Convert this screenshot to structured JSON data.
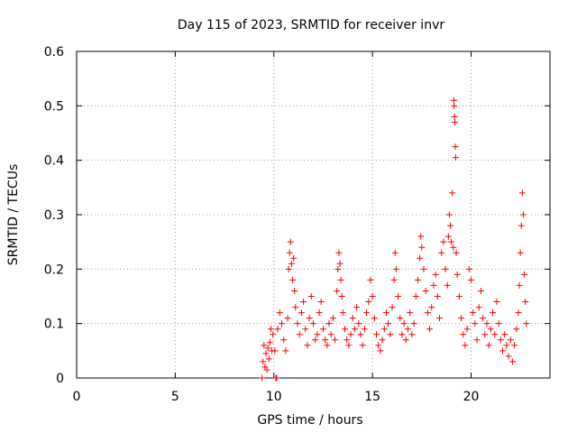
{
  "chart_data": {
    "type": "scatter",
    "title": "Day 115 of 2023, SRMTID for receiver invr",
    "xlabel": "GPS time / hours",
    "ylabel": "SRMTID / TECUs",
    "xlim": [
      0,
      24
    ],
    "ylim": [
      0,
      0.6
    ],
    "xticks": [
      0,
      5,
      10,
      15,
      20
    ],
    "xtick_labels": [
      "0",
      "5",
      "10",
      "15",
      "20"
    ],
    "yticks": [
      0,
      0.1,
      0.2,
      0.3,
      0.4,
      0.5,
      0.6
    ],
    "ytick_labels": [
      "0",
      "0.1",
      "0.2",
      "0.3",
      "0.4",
      "0.5",
      "0.6"
    ],
    "grid": true,
    "marker": "+",
    "color": "#ff0000",
    "series": [
      {
        "name": "SRMTID",
        "points": [
          [
            9.4,
            0.0
          ],
          [
            9.45,
            0.03
          ],
          [
            9.5,
            0.06
          ],
          [
            9.55,
            0.02
          ],
          [
            9.6,
            0.045
          ],
          [
            9.65,
            0.015
          ],
          [
            9.7,
            0.055
          ],
          [
            9.75,
            0.035
          ],
          [
            9.8,
            0.065
          ],
          [
            9.85,
            0.09
          ],
          [
            9.9,
            0.05
          ],
          [
            9.95,
            0.08
          ],
          [
            10.1,
            0.0
          ],
          [
            10.15,
            0.0
          ],
          [
            10.05,
            0.05
          ],
          [
            10.2,
            0.09
          ],
          [
            10.3,
            0.12
          ],
          [
            10.4,
            0.1
          ],
          [
            10.5,
            0.07
          ],
          [
            10.6,
            0.05
          ],
          [
            10.7,
            0.11
          ],
          [
            10.75,
            0.2
          ],
          [
            10.8,
            0.23
          ],
          [
            10.85,
            0.25
          ],
          [
            10.9,
            0.21
          ],
          [
            10.95,
            0.18
          ],
          [
            11.0,
            0.22
          ],
          [
            11.05,
            0.16
          ],
          [
            11.1,
            0.13
          ],
          [
            11.2,
            0.1
          ],
          [
            11.3,
            0.08
          ],
          [
            11.4,
            0.12
          ],
          [
            11.5,
            0.14
          ],
          [
            11.6,
            0.09
          ],
          [
            11.7,
            0.06
          ],
          [
            11.8,
            0.11
          ],
          [
            11.9,
            0.15
          ],
          [
            12.0,
            0.1
          ],
          [
            12.1,
            0.07
          ],
          [
            12.2,
            0.08
          ],
          [
            12.3,
            0.12
          ],
          [
            12.4,
            0.14
          ],
          [
            12.5,
            0.09
          ],
          [
            12.6,
            0.07
          ],
          [
            12.7,
            0.06
          ],
          [
            12.8,
            0.1
          ],
          [
            12.9,
            0.08
          ],
          [
            13.0,
            0.11
          ],
          [
            13.1,
            0.07
          ],
          [
            13.2,
            0.16
          ],
          [
            13.25,
            0.2
          ],
          [
            13.3,
            0.23
          ],
          [
            13.35,
            0.21
          ],
          [
            13.4,
            0.18
          ],
          [
            13.45,
            0.15
          ],
          [
            13.5,
            0.12
          ],
          [
            13.6,
            0.09
          ],
          [
            13.7,
            0.07
          ],
          [
            13.8,
            0.06
          ],
          [
            13.9,
            0.08
          ],
          [
            14.0,
            0.11
          ],
          [
            14.1,
            0.09
          ],
          [
            14.2,
            0.13
          ],
          [
            14.3,
            0.1
          ],
          [
            14.4,
            0.08
          ],
          [
            14.5,
            0.06
          ],
          [
            14.6,
            0.09
          ],
          [
            14.7,
            0.12
          ],
          [
            14.8,
            0.14
          ],
          [
            14.9,
            0.18
          ],
          [
            15.0,
            0.15
          ],
          [
            15.1,
            0.11
          ],
          [
            15.2,
            0.08
          ],
          [
            15.3,
            0.06
          ],
          [
            15.4,
            0.05
          ],
          [
            15.5,
            0.07
          ],
          [
            15.6,
            0.09
          ],
          [
            15.7,
            0.12
          ],
          [
            15.8,
            0.1
          ],
          [
            15.9,
            0.08
          ],
          [
            16.0,
            0.13
          ],
          [
            16.1,
            0.18
          ],
          [
            16.15,
            0.23
          ],
          [
            16.2,
            0.2
          ],
          [
            16.3,
            0.15
          ],
          [
            16.4,
            0.11
          ],
          [
            16.5,
            0.08
          ],
          [
            16.6,
            0.1
          ],
          [
            16.7,
            0.07
          ],
          [
            16.8,
            0.09
          ],
          [
            16.9,
            0.12
          ],
          [
            17.0,
            0.08
          ],
          [
            17.1,
            0.1
          ],
          [
            17.2,
            0.15
          ],
          [
            17.3,
            0.18
          ],
          [
            17.4,
            0.22
          ],
          [
            17.45,
            0.26
          ],
          [
            17.5,
            0.24
          ],
          [
            17.6,
            0.2
          ],
          [
            17.7,
            0.16
          ],
          [
            17.8,
            0.12
          ],
          [
            17.9,
            0.09
          ],
          [
            18.0,
            0.13
          ],
          [
            18.1,
            0.17
          ],
          [
            18.2,
            0.19
          ],
          [
            18.3,
            0.15
          ],
          [
            18.4,
            0.11
          ],
          [
            18.5,
            0.23
          ],
          [
            18.6,
            0.25
          ],
          [
            18.7,
            0.2
          ],
          [
            18.8,
            0.17
          ],
          [
            18.85,
            0.26
          ],
          [
            18.9,
            0.3
          ],
          [
            18.95,
            0.28
          ],
          [
            19.0,
            0.25
          ],
          [
            19.05,
            0.34
          ],
          [
            19.1,
            0.24
          ],
          [
            19.12,
            0.51
          ],
          [
            19.14,
            0.5
          ],
          [
            19.16,
            0.48
          ],
          [
            19.18,
            0.47
          ],
          [
            19.2,
            0.425
          ],
          [
            19.22,
            0.405
          ],
          [
            19.25,
            0.23
          ],
          [
            19.3,
            0.19
          ],
          [
            19.4,
            0.15
          ],
          [
            19.5,
            0.11
          ],
          [
            19.6,
            0.08
          ],
          [
            19.7,
            0.06
          ],
          [
            19.8,
            0.09
          ],
          [
            19.9,
            0.2
          ],
          [
            20.0,
            0.18
          ],
          [
            20.1,
            0.12
          ],
          [
            20.2,
            0.1
          ],
          [
            20.3,
            0.07
          ],
          [
            20.4,
            0.13
          ],
          [
            20.5,
            0.16
          ],
          [
            20.6,
            0.11
          ],
          [
            20.7,
            0.08
          ],
          [
            20.8,
            0.1
          ],
          [
            20.9,
            0.06
          ],
          [
            21.0,
            0.09
          ],
          [
            21.1,
            0.12
          ],
          [
            21.2,
            0.08
          ],
          [
            21.3,
            0.14
          ],
          [
            21.4,
            0.1
          ],
          [
            21.5,
            0.07
          ],
          [
            21.6,
            0.05
          ],
          [
            21.7,
            0.08
          ],
          [
            21.8,
            0.06
          ],
          [
            21.9,
            0.04
          ],
          [
            22.0,
            0.07
          ],
          [
            22.1,
            0.03
          ],
          [
            22.2,
            0.06
          ],
          [
            22.3,
            0.09
          ],
          [
            22.4,
            0.12
          ],
          [
            22.45,
            0.17
          ],
          [
            22.5,
            0.23
          ],
          [
            22.55,
            0.28
          ],
          [
            22.6,
            0.34
          ],
          [
            22.65,
            0.3
          ],
          [
            22.7,
            0.19
          ],
          [
            22.75,
            0.14
          ],
          [
            22.8,
            0.1
          ]
        ]
      }
    ]
  }
}
